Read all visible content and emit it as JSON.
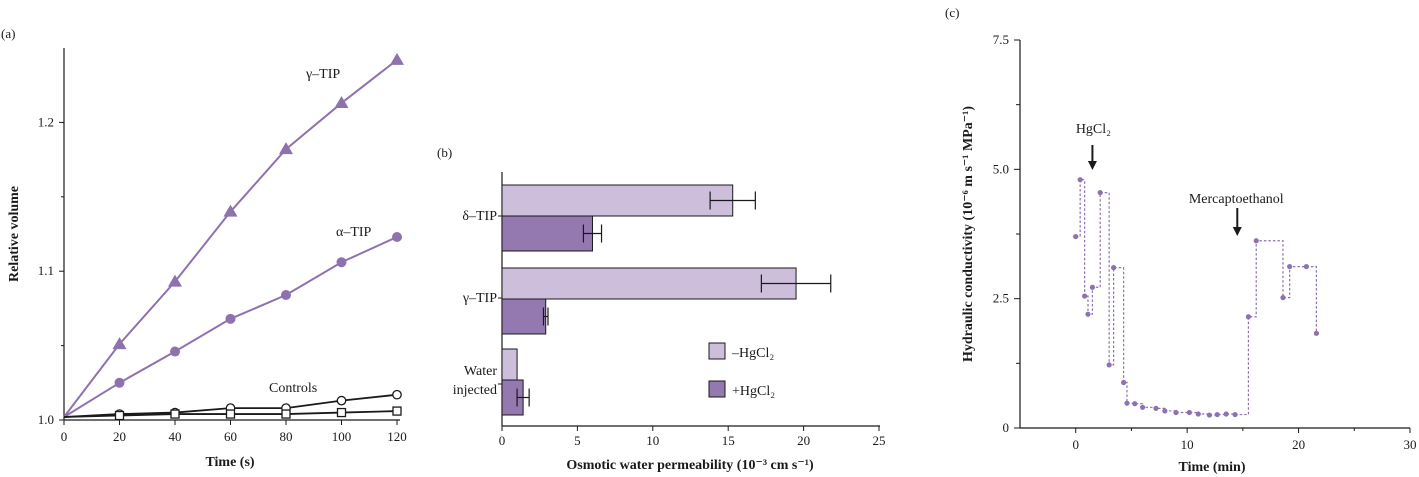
{
  "colors": {
    "purple": "#8e72b0",
    "bar_light": "#cdbfdc",
    "bar_dark": "#9478b0",
    "ink": "#1a1a1a"
  },
  "chart_data": [
    {
      "panel_label": "(a)",
      "type": "line",
      "xlabel": "Time (s)",
      "ylabel": "Relative volume",
      "xlim": [
        0,
        120
      ],
      "ylim": [
        1.0,
        1.25
      ],
      "xticks": [
        "0",
        "20",
        "40",
        "60",
        "80",
        "100",
        "120"
      ],
      "yticks": [
        "1.0",
        "1.1",
        "1.2"
      ],
      "series": [
        {
          "name": "γ–TIP",
          "marker": "triangle",
          "x": [
            0,
            20,
            40,
            60,
            80,
            100,
            120
          ],
          "y": [
            1.002,
            1.051,
            1.093,
            1.14,
            1.182,
            1.213,
            1.242
          ]
        },
        {
          "name": "α–TIP",
          "marker": "circle",
          "x": [
            0,
            20,
            40,
            60,
            80,
            100,
            120
          ],
          "y": [
            1.002,
            1.025,
            1.046,
            1.068,
            1.084,
            1.106,
            1.123
          ]
        },
        {
          "name": "Controls",
          "marker": "open-circle",
          "x": [
            0,
            20,
            40,
            60,
            80,
            100,
            120
          ],
          "y": [
            1.002,
            1.004,
            1.005,
            1.008,
            1.008,
            1.013,
            1.017
          ]
        },
        {
          "name": "",
          "marker": "open-square",
          "x": [
            0,
            20,
            40,
            60,
            80,
            100,
            120
          ],
          "y": [
            1.002,
            1.003,
            1.004,
            1.004,
            1.004,
            1.005,
            1.006
          ]
        }
      ]
    },
    {
      "panel_label": "(b)",
      "type": "bar",
      "orientation": "horizontal",
      "xlabel": "Osmotic water permeability (10⁻³ cm s⁻¹)",
      "xlim": [
        0,
        25
      ],
      "xticks": [
        "0",
        "5",
        "10",
        "15",
        "20",
        "25"
      ],
      "categories": [
        "δ–TIP",
        "γ–TIP",
        "Water injected"
      ],
      "series": [
        {
          "name": "–HgCl₂",
          "values": [
            15.3,
            19.5,
            1.0
          ],
          "errors": [
            1.5,
            2.3,
            0
          ]
        },
        {
          "name": "+HgCl₂",
          "values": [
            6.0,
            2.9,
            1.4
          ],
          "errors": [
            0.6,
            0.15,
            0.4
          ]
        }
      ],
      "legend": [
        "–HgCl₂",
        "+HgCl₂"
      ]
    },
    {
      "panel_label": "(c)",
      "type": "scatter",
      "xlabel": "Time (min)",
      "ylabel": "Hydraulic conductivity (10⁻⁶ m s⁻¹ MPa⁻¹)",
      "xlim": [
        -5,
        30
      ],
      "ylim": [
        0,
        7.5
      ],
      "xticks": [
        "0",
        "10",
        "20",
        "30"
      ],
      "yticks": [
        "0",
        "2.5",
        "5.0",
        "7.5"
      ],
      "annotations": [
        {
          "text": "HgCl₂",
          "x": 1.5
        },
        {
          "text": "Mercaptoethanol",
          "x": 14.5
        }
      ],
      "points": [
        [
          0,
          3.7
        ],
        [
          0.4,
          4.8
        ],
        [
          0.8,
          2.55
        ],
        [
          1.1,
          2.2
        ],
        [
          1.5,
          2.72
        ],
        [
          2.2,
          4.55
        ],
        [
          3.0,
          1.22
        ],
        [
          3.4,
          3.1
        ],
        [
          4.3,
          0.88
        ],
        [
          4.6,
          0.48
        ],
        [
          5.3,
          0.47
        ],
        [
          6.0,
          0.4
        ],
        [
          7.2,
          0.38
        ],
        [
          8.0,
          0.33
        ],
        [
          9.0,
          0.3
        ],
        [
          10.2,
          0.3
        ],
        [
          11.0,
          0.27
        ],
        [
          12.0,
          0.25
        ],
        [
          12.7,
          0.26
        ],
        [
          13.5,
          0.27
        ],
        [
          14.3,
          0.26
        ],
        [
          15.5,
          2.15
        ],
        [
          16.2,
          3.62
        ],
        [
          18.6,
          2.52
        ],
        [
          19.2,
          3.12
        ],
        [
          20.7,
          3.12
        ],
        [
          21.6,
          1.83
        ]
      ]
    }
  ]
}
